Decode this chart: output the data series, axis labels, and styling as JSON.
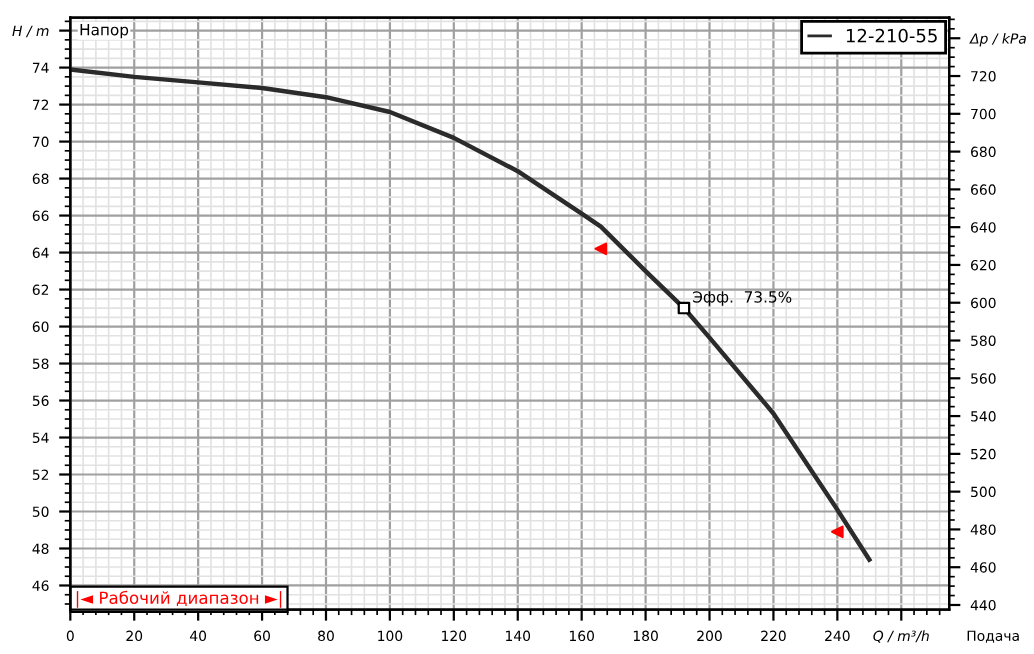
{
  "chart_data": {
    "type": "line",
    "xlabel": "Подача",
    "x": [
      0,
      20,
      40,
      60,
      80,
      100,
      120,
      140,
      160,
      166,
      180,
      192,
      200,
      220,
      240,
      250
    ],
    "series": [
      {
        "name": "12-210-55",
        "color": "#2b2b2b",
        "values": [
          73.9,
          73.5,
          73.2,
          72.9,
          72.4,
          71.6,
          70.2,
          68.4,
          66.1,
          65.4,
          63.0,
          61.0,
          59.4,
          55.3,
          50.1,
          47.4
        ]
      },
      {
        "type": "scatter",
        "x": [
          192
        ],
        "values": [
          61.0
        ],
        "color": "#000000",
        "marker": "square"
      },
      {
        "type": "scatter",
        "x": [
          166,
          240
        ],
        "values": [
          64.2,
          48.9
        ],
        "color": "#ff0000",
        "marker": "triangle"
      }
    ],
    "xlim": [
      0,
      275
    ],
    "xticks": [
      0,
      20,
      40,
      60,
      80,
      100,
      120,
      140,
      160,
      180,
      200,
      220,
      240,
      {
        "value": 260,
        "label": "Q / m³/h"
      }
    ],
    "ylim": [
      44.7,
      76.7
    ],
    "yticks": [
      46,
      48,
      50,
      52,
      54,
      56,
      58,
      60,
      62,
      64,
      66,
      68,
      70,
      72,
      74,
      {
        "value": 76,
        "label": "H / m"
      }
    ],
    "y2lim": [
      437.6,
      750.9
    ],
    "y2ticks": [
      440,
      460,
      480,
      500,
      520,
      540,
      560,
      580,
      600,
      620,
      640,
      660,
      680,
      700,
      720,
      {
        "value": 740,
        "label": "Δp / kPa"
      }
    ],
    "annotations": [
      "Напор",
      {
        "text": "Эфф.  73.5%",
        "x": 192,
        "y": 61.0
      },
      "|◄ Рабочий диапазон ►|"
    ],
    "grid": true,
    "legend": "top right",
    "line_style": "solid"
  }
}
